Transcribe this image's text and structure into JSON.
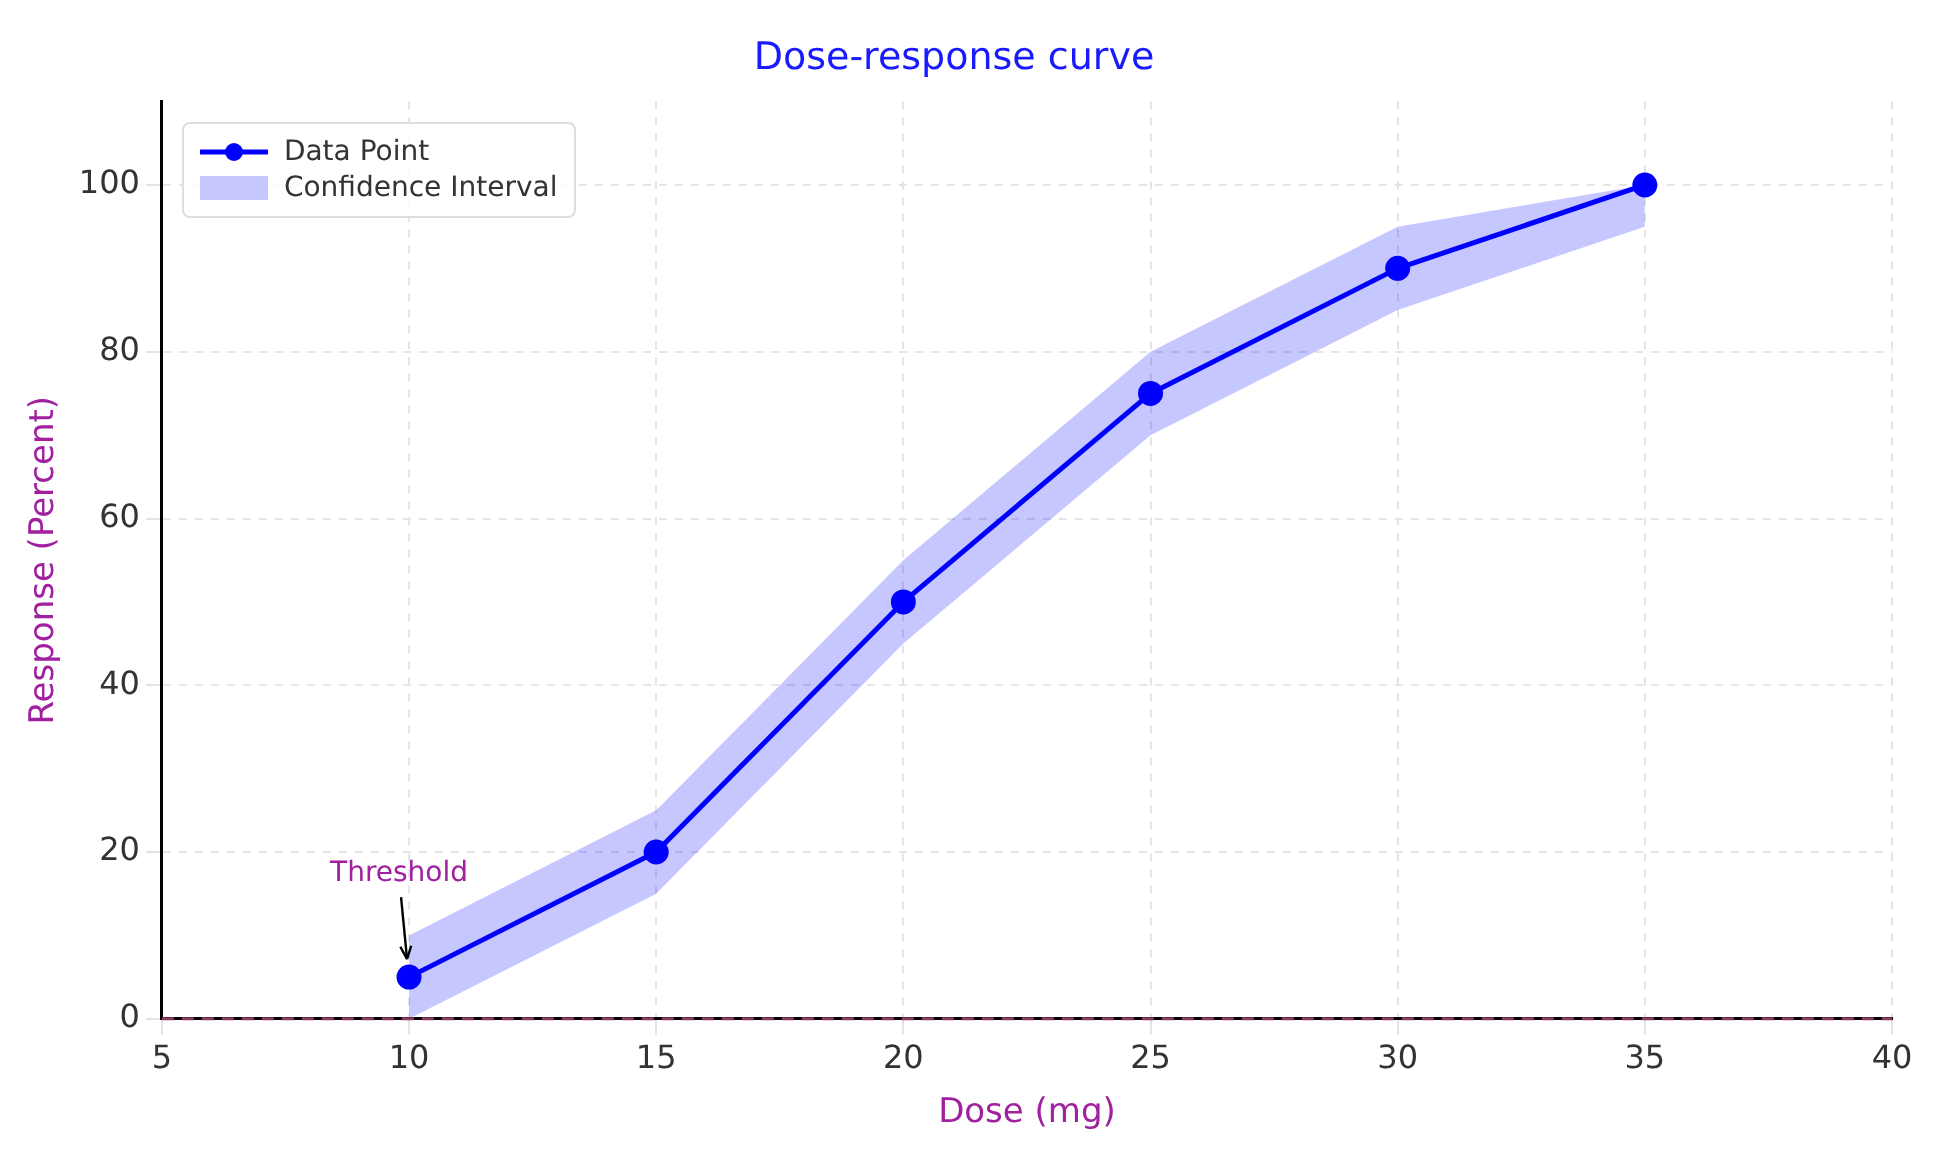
{
  "chart_data": {
    "type": "line",
    "title": "Dose-response curve",
    "xlabel": "Dose (mg)",
    "ylabel": "Response (Percent)",
    "x": [
      10,
      15,
      20,
      25,
      30,
      35
    ],
    "series": [
      {
        "name": "Data Point",
        "color": "#0000ff",
        "values": [
          5,
          20,
          50,
          75,
          90,
          100
        ],
        "lower": [
          0,
          15,
          45,
          70,
          85,
          95
        ],
        "upper": [
          10,
          25,
          55,
          80,
          95,
          100
        ]
      }
    ],
    "xlim": [
      5,
      40
    ],
    "xticks": [
      5,
      10,
      15,
      20,
      25,
      30,
      35,
      40
    ],
    "ylim": [
      0,
      110
    ],
    "yticks": [
      0,
      20,
      40,
      60,
      80,
      100
    ],
    "ref_lines": [
      {
        "axis": "y",
        "value": 0,
        "color": "#8b3a62",
        "line_style": "dashed"
      }
    ],
    "annotations": [
      {
        "text": "Threshold",
        "x": 10,
        "y": 5
      },
      "Confidence Interval"
    ],
    "grid": true,
    "legend": "top left",
    "marker": "circle",
    "line_style": "solid"
  }
}
